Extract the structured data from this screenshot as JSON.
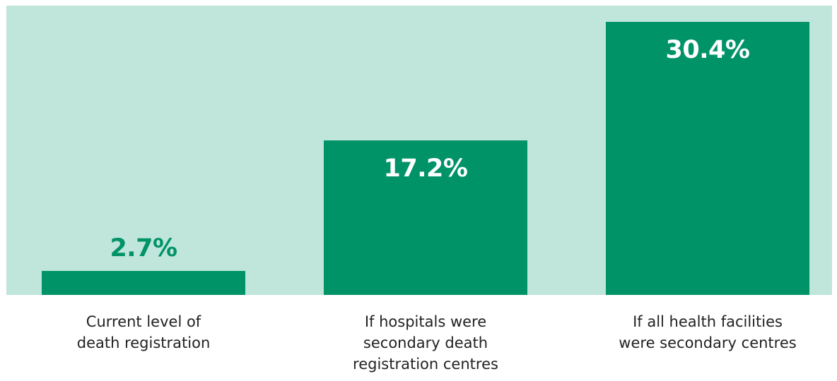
{
  "colors": {
    "plot_background": "#c0e5da",
    "bar": "#009368",
    "label_on_bar": "#ffffff",
    "label_above_bar": "#009368",
    "category_text": "#222222"
  },
  "chart_data": {
    "type": "bar",
    "categories": [
      "Current level of death registration",
      "If hospitals were secondary death registration centres",
      "If all health facilities were secondary centres"
    ],
    "category_lines": [
      [
        "Current level of",
        "death registration"
      ],
      [
        "If hospitals were",
        "secondary death",
        "registration centres"
      ],
      [
        "If all health facilities",
        "were secondary centres"
      ]
    ],
    "values": [
      2.7,
      17.2,
      30.4
    ],
    "value_labels": [
      "2.7%",
      "17.2%",
      "30.4%"
    ],
    "ylim": [
      0,
      32.2
    ],
    "grid": false,
    "legend": "none"
  }
}
